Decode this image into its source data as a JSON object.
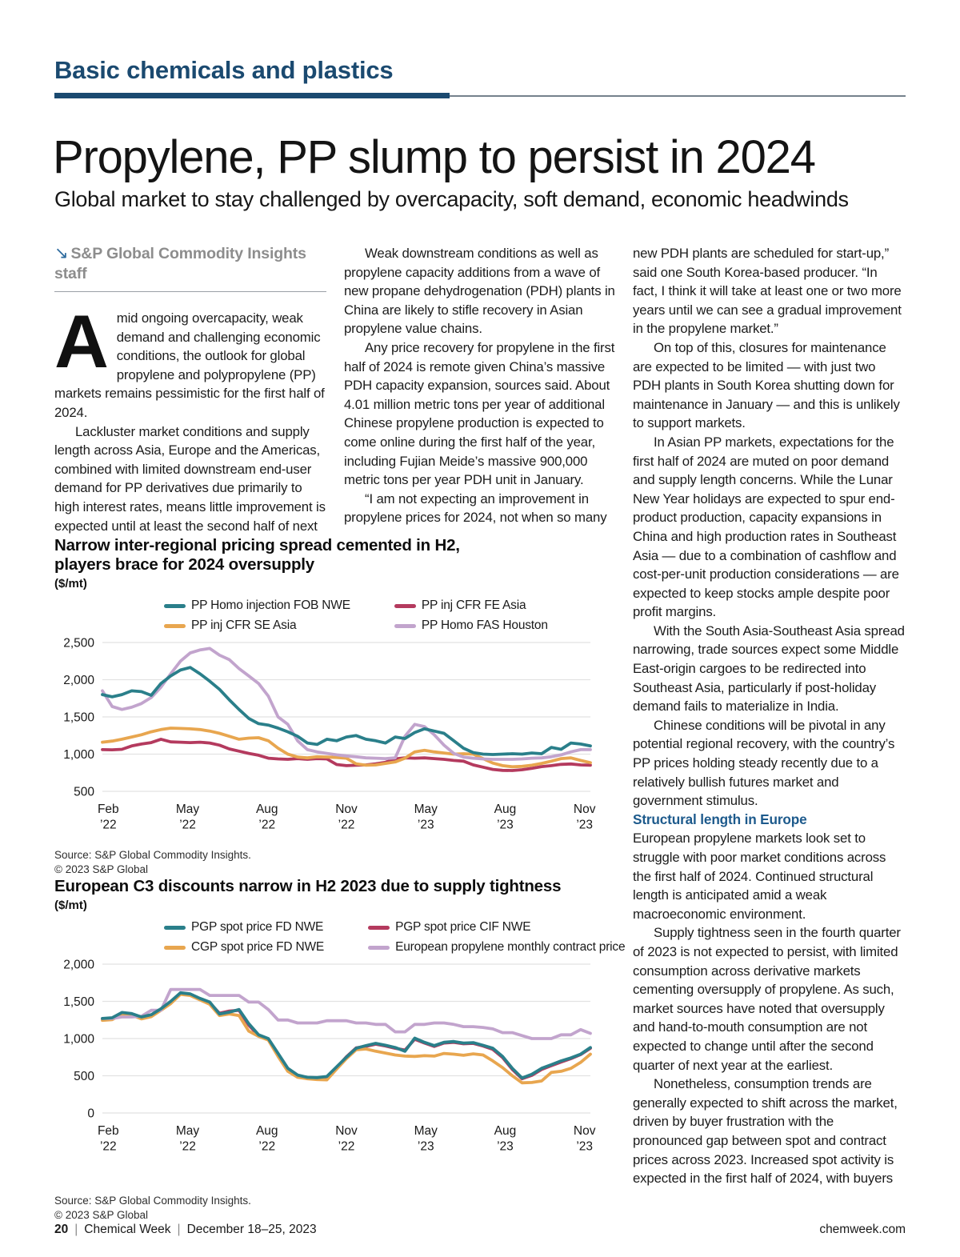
{
  "kicker": "Basic chemicals and plastics",
  "title": "Propylene, PP slump to persist in 2024",
  "subtitle": "Global market to stay challenged by overcapacity, soft demand, economic headwinds",
  "byline": "S&P Global Commodity Insights staff",
  "article": {
    "col1": {
      "drop_cap": "A",
      "p1": "mid ongoing overcapacity, weak demand and challenging economic conditions, the outlook for global propylene and polypropylene (PP) markets remains pessimistic for the first half of 2024.",
      "p2": "Lackluster market conditions and supply length across Asia, Europe and the Americas, combined with limited downstream end-user demand for PP derivatives due primarily to high interest rates, means little improvement is expected until at least the second half of next year."
    },
    "col2": {
      "p1": "Weak downstream conditions as well as propylene capacity additions from a wave of new propane dehydrogenation (PDH) plants in China are likely to stifle recovery in Asian propylene value chains.",
      "p2": "Any price recovery for propylene in the first half of 2024 is remote given China’s massive PDH capacity expansion, sources said. About 4.01 million metric tons per year of additional Chinese propylene production is expected to come online during the first half of the year, including Fujian Meide’s massive 900,000 metric tons per year PDH unit in January.",
      "p3": "“I am not expecting an improvement in propylene prices for 2024, not when so many"
    },
    "col3": {
      "p1": "new PDH plants are scheduled for start-up,” said one South Korea-based producer. “In fact, I think it will take at least one or two more years until we can see a gradual improvement in the propylene market.”",
      "p2": "On top of this, closures for maintenance are expected to be limited — with just two PDH plants in South Korea shutting down for maintenance in January — and this is unlikely to support markets.",
      "p3": "In Asian PP markets, expectations for the first half of 2024 are muted on poor demand and supply length concerns. While the Lunar New Year holidays are expected to spur end-product production, capacity expansions in China and high production rates in Southeast Asia — due to a combination of cashflow and cost-per-unit production considerations — are expected to keep stocks ample despite poor profit margins.",
      "p4": "With the South Asia-Southeast Asia spread narrowing, trade sources expect some Middle East-origin cargoes to be redirected into Southeast Asia, particularly if post-holiday demand fails to materialize in India.",
      "p5": "Chinese conditions will be pivotal in any potential regional recovery, with the country’s PP prices holding steady recently due to a relatively bullish futures market and government stimulus.",
      "subhead": "Structural length in Europe",
      "p6": "European propylene markets look set to struggle with poor market conditions across the first half of 2024. Continued structural length is anticipated amid a weak macroeconomic environment.",
      "p7": "Supply tightness seen in the fourth quarter of 2023 is not expected to persist, with limited consumption across derivative markets cementing oversupply of propylene. As such, market sources have noted that oversupply and hand-to-mouth consumption are not expected to change until after the second quarter of next year at the earliest.",
      "p8": "Nonetheless, consumption trends are generally expected to shift across the market, driven by buyer frustration with the pronounced gap between spot and contract prices across 2023. Increased spot activity is expected in the first half of 2024, with buyers"
    }
  },
  "chart_data": [
    {
      "type": "line",
      "title_lines": [
        "Narrow inter-regional pricing spread cemented in H2,",
        "players brace for 2024 oversupply"
      ],
      "unit": "($/mt)",
      "ylim": [
        500,
        2500
      ],
      "yticks": [
        2500,
        2000,
        1500,
        1000,
        500
      ],
      "ytick_labels": [
        "2,500",
        "2,000",
        "1,500",
        "1,000",
        "500"
      ],
      "xtick_labels": [
        [
          "Feb",
          "’22"
        ],
        [
          "May",
          "’22"
        ],
        [
          "Aug",
          "’22"
        ],
        [
          "Nov",
          "’22"
        ],
        [
          "May",
          "’23"
        ],
        [
          "Aug",
          "’23"
        ],
        [
          "Nov",
          "’23"
        ]
      ],
      "grid": true,
      "legend_position": "top",
      "source_lines": [
        "Source: S&P Global Commodity Insights.",
        "© 2023 S&P Global"
      ],
      "draw_order": [
        1,
        2,
        3,
        0
      ],
      "series": [
        {
          "name": "PP Homo injection FOB NWE",
          "color": "#2a7f8a",
          "values": [
            1800,
            1770,
            1800,
            1850,
            1840,
            1790,
            1950,
            2050,
            2130,
            2165,
            2080,
            1980,
            1870,
            1730,
            1600,
            1480,
            1410,
            1390,
            1350,
            1300,
            1240,
            1150,
            1130,
            1200,
            1180,
            1230,
            1250,
            1200,
            1180,
            1150,
            1230,
            1210,
            1290,
            1340,
            1310,
            1280,
            1180,
            1080,
            1020,
            1000,
            995,
            1000,
            1005,
            1000,
            1015,
            1005,
            1090,
            1065,
            1150,
            1135,
            1110
          ]
        },
        {
          "name": "PP inj CFR FE Asia",
          "color": "#b43a5e",
          "values": [
            1060,
            1058,
            1065,
            1110,
            1135,
            1155,
            1200,
            1165,
            1160,
            1155,
            1160,
            1150,
            1120,
            1070,
            1040,
            1010,
            985,
            945,
            935,
            930,
            940,
            930,
            940,
            935,
            860,
            845,
            850,
            855,
            870,
            890,
            935,
            950,
            945,
            950,
            940,
            930,
            915,
            905,
            855,
            825,
            795,
            782,
            780,
            790,
            810,
            832,
            845,
            862,
            868,
            855,
            852
          ]
        },
        {
          "name": "PP inj CFR SE Asia",
          "color": "#e8a64f",
          "values": [
            1160,
            1175,
            1200,
            1230,
            1260,
            1300,
            1330,
            1350,
            1345,
            1340,
            1330,
            1310,
            1280,
            1240,
            1200,
            1215,
            1220,
            1180,
            1080,
            1000,
            960,
            950,
            965,
            960,
            955,
            945,
            870,
            850,
            855,
            875,
            895,
            945,
            1030,
            1050,
            1030,
            1015,
            1000,
            1005,
            1000,
            940,
            880,
            845,
            830,
            835,
            850,
            875,
            905,
            940,
            950,
            915,
            885
          ]
        },
        {
          "name": "PP Homo FAS Houston",
          "color": "#c2a4cd",
          "values": [
            1850,
            1640,
            1600,
            1630,
            1680,
            1760,
            1900,
            2080,
            2250,
            2360,
            2400,
            2420,
            2330,
            2270,
            2150,
            2050,
            1950,
            1780,
            1500,
            1400,
            1180,
            1060,
            1030,
            1010,
            990,
            975,
            965,
            950,
            945,
            940,
            950,
            1240,
            1400,
            1370,
            1260,
            1120,
            1010,
            960,
            945,
            935,
            930,
            930,
            930,
            935,
            945,
            950,
            965,
            990,
            1030,
            1060,
            1060
          ]
        }
      ]
    },
    {
      "type": "line",
      "title_lines": [
        "European C3 discounts narrow in H2 2023 due to supply tightness"
      ],
      "unit": "($/mt)",
      "ylim": [
        0,
        2000
      ],
      "yticks": [
        2000,
        1500,
        1000,
        500,
        0
      ],
      "ytick_labels": [
        "2,000",
        "1,500",
        "1,000",
        "500",
        "0"
      ],
      "xtick_labels": [
        [
          "Feb",
          "’22"
        ],
        [
          "May",
          "’22"
        ],
        [
          "Aug",
          "’22"
        ],
        [
          "Nov",
          "’22"
        ],
        [
          "May",
          "’23"
        ],
        [
          "Aug",
          "’23"
        ],
        [
          "Nov",
          "’23"
        ]
      ],
      "grid": true,
      "legend_position": "top",
      "source_lines": [
        "Source: S&P Global Commodity Insights.",
        "© 2023 S&P Global"
      ],
      "draw_order": [
        1,
        2,
        3,
        0
      ],
      "series": [
        {
          "name": "PGP spot price FD NWE",
          "color": "#2a7f8a",
          "values": [
            1270,
            1280,
            1350,
            1335,
            1290,
            1320,
            1400,
            1500,
            1615,
            1600,
            1540,
            1490,
            1330,
            1355,
            1390,
            1200,
            1050,
            1000,
            800,
            600,
            510,
            480,
            475,
            490,
            620,
            750,
            870,
            905,
            935,
            910,
            880,
            830,
            1005,
            950,
            905,
            950,
            960,
            940,
            945,
            910,
            870,
            760,
            600,
            470,
            520,
            600,
            650,
            700,
            740,
            790,
            880
          ]
        },
        {
          "name": "PGP spot price CIF NWE",
          "color": "#b43a5e",
          "values": [
            1260,
            1270,
            1340,
            1325,
            1280,
            1310,
            1390,
            1490,
            1605,
            1590,
            1530,
            1480,
            1340,
            1370,
            1380,
            1180,
            1040,
            990,
            790,
            590,
            500,
            470,
            465,
            480,
            610,
            755,
            875,
            895,
            925,
            900,
            870,
            845,
            990,
            940,
            895,
            940,
            950,
            930,
            935,
            900,
            855,
            745,
            585,
            460,
            505,
            585,
            635,
            685,
            730,
            785,
            870
          ]
        },
        {
          "name": "CGP spot price FD NWE",
          "color": "#e8a64f",
          "values": [
            1245,
            1255,
            1330,
            1315,
            1265,
            1295,
            1380,
            1470,
            1595,
            1580,
            1520,
            1460,
            1310,
            1330,
            1310,
            1100,
            1030,
            980,
            760,
            560,
            480,
            460,
            450,
            445,
            590,
            730,
            850,
            860,
            830,
            805,
            780,
            765,
            760,
            770,
            765,
            800,
            790,
            775,
            795,
            780,
            700,
            610,
            500,
            405,
            410,
            430,
            545,
            560,
            600,
            680,
            790
          ]
        },
        {
          "name": "European propylene monthly contract price",
          "color": "#c2a4cd",
          "values": [
            1270,
            1270,
            1290,
            1290,
            1300,
            1380,
            1380,
            1660,
            1660,
            1660,
            1660,
            1580,
            1580,
            1580,
            1580,
            1490,
            1490,
            1390,
            1250,
            1250,
            1210,
            1210,
            1210,
            1240,
            1240,
            1240,
            1210,
            1210,
            1190,
            1190,
            1090,
            1090,
            1190,
            1190,
            1210,
            1210,
            1190,
            1160,
            1160,
            1150,
            1130,
            1080,
            1080,
            1040,
            1000,
            1000,
            1000,
            1050,
            1050,
            1120,
            1070
          ]
        }
      ]
    }
  ],
  "footer": {
    "page_number": "20",
    "publication": "Chemical Week",
    "date": "December 18–25, 2023",
    "website": "chemweek.com"
  }
}
